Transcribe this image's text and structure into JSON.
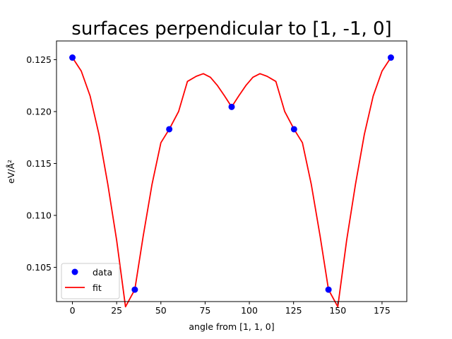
{
  "chart_data": {
    "type": "line",
    "title": "surfaces perpendicular to [1, -1, 0]",
    "xlabel": "angle from [1, 1, 0]",
    "ylabel": "eV/Å²",
    "xlim": [
      -9,
      189
    ],
    "ylim": [
      0.1017,
      0.1268
    ],
    "xticks": [
      0,
      25,
      50,
      75,
      100,
      125,
      150,
      175
    ],
    "yticks": [
      0.105,
      0.11,
      0.115,
      0.12,
      0.125
    ],
    "ytick_labels": [
      "0.105",
      "0.110",
      "0.115",
      "0.120",
      "0.125"
    ],
    "legend_position": "lower left",
    "grid": false,
    "series": [
      {
        "name": "data",
        "style": "markers",
        "color": "#0000ff",
        "x": [
          0,
          35.26,
          54.74,
          90,
          125.26,
          144.74,
          180
        ],
        "y": [
          0.1252,
          0.10285,
          0.1183,
          0.12045,
          0.1183,
          0.10285,
          0.1252
        ]
      },
      {
        "name": "fit",
        "style": "line",
        "color": "#ff0000",
        "x": [
          0,
          5,
          10,
          15,
          20,
          25,
          30,
          35.26,
          40,
          45,
          50,
          54.74,
          60,
          65,
          70,
          74,
          78,
          82,
          86,
          90,
          94,
          98,
          102,
          106,
          110,
          115,
          120,
          125.26,
          130,
          135,
          140,
          144.74,
          150,
          155,
          160,
          165,
          170,
          175,
          180
        ],
        "y": [
          0.1252,
          0.1239,
          0.1215,
          0.1178,
          0.113,
          0.1076,
          0.1012,
          0.10285,
          0.108,
          0.113,
          0.117,
          0.1183,
          0.12,
          0.1229,
          0.1234,
          0.12365,
          0.1233,
          0.1225,
          0.1215,
          0.12045,
          0.1215,
          0.1225,
          0.1233,
          0.12365,
          0.1234,
          0.1229,
          0.12,
          0.1183,
          0.117,
          0.113,
          0.108,
          0.10285,
          0.1012,
          0.1076,
          0.113,
          0.1178,
          0.1215,
          0.1239,
          0.1252
        ]
      }
    ]
  }
}
